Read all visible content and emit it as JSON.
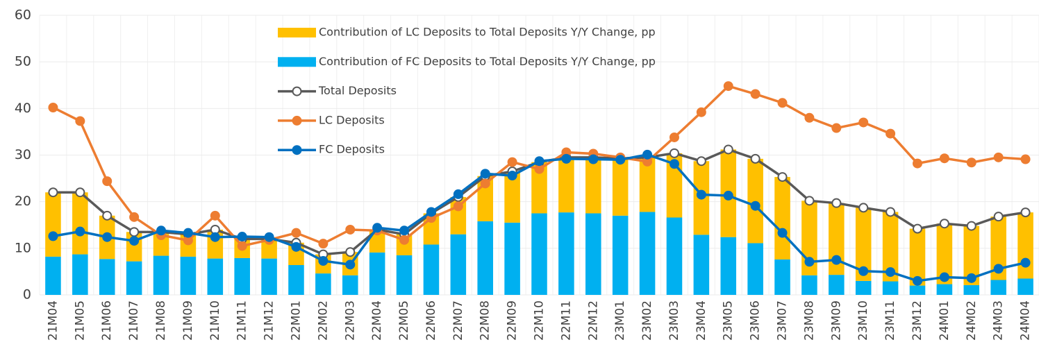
{
  "chart_data": {
    "type": "bar-line",
    "categories": [
      "21M04",
      "21M05",
      "21M06",
      "21M07",
      "21M08",
      "21M09",
      "21M10",
      "21M11",
      "21M12",
      "22M01",
      "22M02",
      "22M03",
      "22M04",
      "22M05",
      "22M06",
      "22M07",
      "22M08",
      "22M09",
      "22M10",
      "22M11",
      "22M12",
      "23M01",
      "23M02",
      "23M03",
      "23M04",
      "23M05",
      "23M06",
      "23M07",
      "23M08",
      "23M09",
      "23M10",
      "23M11",
      "23M12",
      "24M01",
      "24M02",
      "24M03",
      "24M04"
    ],
    "series": [
      {
        "name": "Contribution of LC Deposits to Total Deposits Y/Y Change, pp",
        "type": "bar",
        "color": "#FFC000",
        "values": [
          13.8,
          13.3,
          9.3,
          6.3,
          5.1,
          4.8,
          6.2,
          4.1,
          4.2,
          4.8,
          4.1,
          5.0,
          4.9,
          4.5,
          6.7,
          8.0,
          9.7,
          11.0,
          11.0,
          11.8,
          12.0,
          12.3,
          11.7,
          13.8,
          15.8,
          18.8,
          18.1,
          17.7,
          16.0,
          15.4,
          15.7,
          14.9,
          12.2,
          13.0,
          12.7,
          13.6,
          14.2
        ]
      },
      {
        "name": "Contribution of FC Deposits to Total Deposits Y/Y Change, pp",
        "type": "bar",
        "color": "#00B0F0",
        "values": [
          8.2,
          8.7,
          7.7,
          7.2,
          8.4,
          8.2,
          7.8,
          7.9,
          7.8,
          6.4,
          4.6,
          4.2,
          9.1,
          8.5,
          10.8,
          13.0,
          15.8,
          15.5,
          17.5,
          17.7,
          17.5,
          17.0,
          17.8,
          16.6,
          12.9,
          12.4,
          11.1,
          7.6,
          4.2,
          4.3,
          3.0,
          2.9,
          2.0,
          2.3,
          2.1,
          3.2,
          3.5
        ]
      },
      {
        "name": "Total Deposits",
        "type": "line",
        "color": "#595959",
        "marker_fill": "#ffffff",
        "values": [
          22.0,
          22.0,
          17.0,
          13.5,
          13.5,
          13.0,
          14.0,
          12.0,
          12.0,
          11.2,
          8.7,
          9.2,
          14.0,
          13.0,
          17.5,
          21.0,
          25.5,
          26.5,
          28.5,
          29.5,
          29.5,
          29.3,
          29.5,
          30.4,
          28.7,
          31.2,
          29.2,
          25.3,
          20.2,
          19.7,
          18.7,
          17.8,
          14.2,
          15.3,
          14.8,
          16.8,
          17.7
        ]
      },
      {
        "name": "LC Deposits",
        "type": "line",
        "color": "#ED7D31",
        "marker_fill": "#ED7D31",
        "values": [
          40.2,
          37.3,
          24.4,
          16.7,
          12.8,
          11.7,
          17.0,
          10.5,
          11.8,
          13.3,
          11.0,
          14.0,
          13.8,
          11.8,
          16.5,
          19.0,
          23.9,
          28.5,
          27.0,
          30.6,
          30.3,
          29.5,
          28.6,
          33.8,
          39.2,
          44.8,
          43.1,
          41.2,
          38.0,
          35.8,
          37.0,
          34.6,
          28.2,
          29.3,
          28.4,
          29.5,
          29.1
        ]
      },
      {
        "name": "FC Deposits",
        "type": "line",
        "color": "#0070C0",
        "marker_fill": "#0070C0",
        "values": [
          12.6,
          13.6,
          12.4,
          11.6,
          13.8,
          13.3,
          12.4,
          12.5,
          12.4,
          10.3,
          7.3,
          6.5,
          14.4,
          13.8,
          17.8,
          21.6,
          26.0,
          25.6,
          28.7,
          29.2,
          29.1,
          29.0,
          30.1,
          28.1,
          21.5,
          21.3,
          19.1,
          13.3,
          7.1,
          7.5,
          5.1,
          4.9,
          3.0,
          3.8,
          3.6,
          5.6,
          6.9
        ]
      }
    ],
    "ylim": [
      0,
      60
    ],
    "yticks": [
      0,
      10,
      20,
      30,
      40,
      50,
      60
    ],
    "grid": true
  }
}
